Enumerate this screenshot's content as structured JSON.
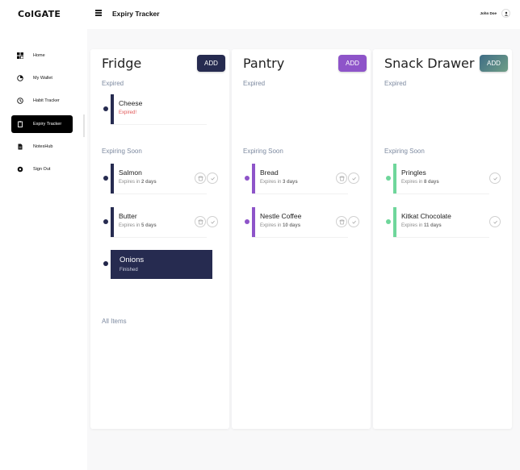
{
  "app": {
    "logo": "ColGATE"
  },
  "sidebar": {
    "items": [
      {
        "label": "Home",
        "icon": "home-icon"
      },
      {
        "label": "My Wallet",
        "icon": "wallet-icon"
      },
      {
        "label": "Habit Tracker",
        "icon": "clock-icon"
      },
      {
        "label": "Expiry Tracker",
        "icon": "clipboard-icon",
        "active": true
      },
      {
        "label": "NotesHub",
        "icon": "document-icon"
      },
      {
        "label": "Sign Out",
        "icon": "power-icon"
      }
    ]
  },
  "header": {
    "title": "Expiry Tracker",
    "user": "John Doe"
  },
  "colors": {
    "fridge": "#262b50",
    "pantry": "#8e54c9",
    "snack": "#6fd69b",
    "snack_button": "#4d7f8a",
    "expired": "#e05555"
  },
  "panels": [
    {
      "title": "Fridge",
      "add_label": "ADD",
      "expired_label": "Expired",
      "expired": [
        {
          "name": "Cheese",
          "status": "Expired!"
        }
      ],
      "soon_label": "Expiring Soon",
      "soon": [
        {
          "name": "Salmon",
          "pre": "Expires in ",
          "n": "2",
          "unit": " days"
        },
        {
          "name": "Butter",
          "pre": "Expires in ",
          "n": "5",
          "unit": " days"
        }
      ],
      "finished": {
        "name": "Onions",
        "status": "Finished"
      },
      "all_label": "All Items"
    },
    {
      "title": "Pantry",
      "add_label": "ADD",
      "expired_label": "Expired",
      "soon_label": "Expiring Soon",
      "soon": [
        {
          "name": "Bread",
          "pre": "Expires in ",
          "n": "3",
          "unit": " days"
        },
        {
          "name": "Nestle Coffee",
          "pre": "Expires in ",
          "n": "10",
          "unit": " days"
        }
      ]
    },
    {
      "title": "Snack Drawer",
      "add_label": "ADD",
      "expired_label": "Expired",
      "soon_label": "Expiring Soon",
      "soon": [
        {
          "name": "Pringles",
          "pre": "Expires in ",
          "n": "8",
          "unit": " days"
        },
        {
          "name": "Kitkat Chocolate",
          "pre": "Expires in ",
          "n": "11",
          "unit": " days"
        }
      ]
    }
  ]
}
